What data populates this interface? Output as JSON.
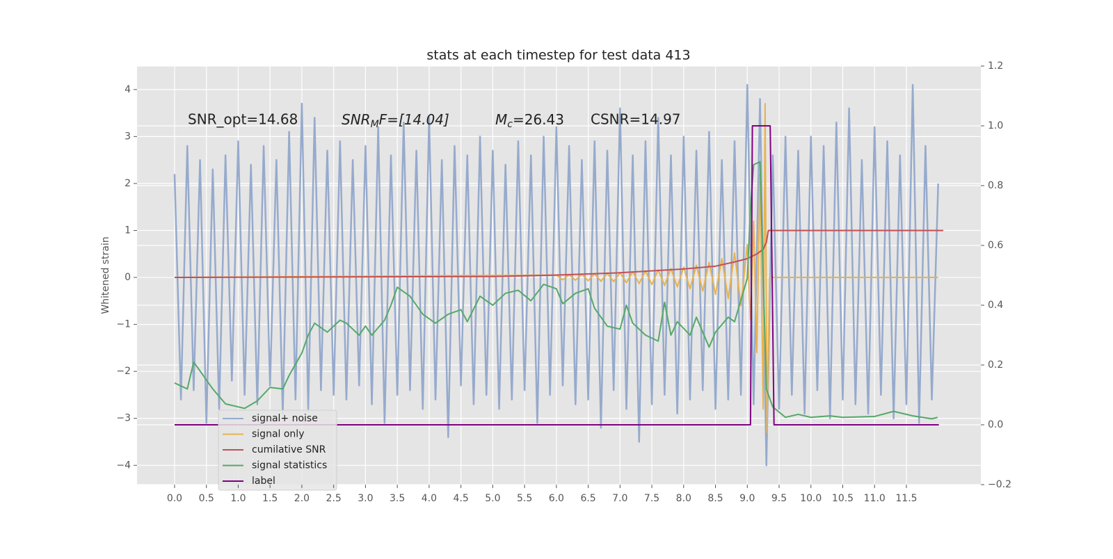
{
  "chart_data": {
    "type": "line",
    "title": "stats at each timestep for test data 413",
    "ylabel": "Whitened strain",
    "annotations": [
      {
        "text": "SNR_opt=14.68"
      },
      {
        "symbol": "SNR",
        "sub": "M",
        "text": "F=[14.04]"
      },
      {
        "symbol": "M",
        "sub": "c",
        "text": "=26.43"
      },
      {
        "text": "CSNR=14.97"
      }
    ],
    "grid": true,
    "xlim": [
      -0.59,
      12.67
    ],
    "ylim": [
      -4.41,
      4.5
    ],
    "y2lim": [
      -0.2,
      1.2
    ],
    "xticks": [
      {
        "value": 0,
        "label": "0.0"
      },
      0.5,
      {
        "value": 1,
        "label": "1.0"
      },
      1.5,
      {
        "value": 2,
        "label": "2.0"
      },
      2.5,
      {
        "value": 3,
        "label": "3.0"
      },
      3.5,
      {
        "value": 4,
        "label": "4.0"
      },
      4.5,
      {
        "value": 5,
        "label": "5.0"
      },
      5.5,
      {
        "value": 6,
        "label": "6.0"
      },
      6.5,
      {
        "value": 7,
        "label": "7.0"
      },
      7.5,
      {
        "value": 8,
        "label": "8.0"
      },
      8.5,
      {
        "value": 9,
        "label": "9.0"
      },
      9.5,
      {
        "value": 10,
        "label": "10.0"
      },
      10.5,
      {
        "value": 11,
        "label": "11.0"
      },
      11.5
    ],
    "yticks": [
      {
        "value": -4,
        "label": "−4"
      },
      {
        "value": -3,
        "label": "−3"
      },
      {
        "value": -2,
        "label": "−2"
      },
      {
        "value": -1,
        "label": "−1"
      },
      0,
      1,
      2,
      3,
      4
    ],
    "y2ticks": [
      {
        "value": -0.2,
        "label": "−0.2"
      },
      {
        "value": 0,
        "label": "0.0"
      },
      0.2,
      0.4,
      0.6,
      0.8,
      {
        "value": 1,
        "label": "1.0"
      },
      1.2
    ],
    "series": [
      {
        "name": "signal+ noise",
        "color": "#96aacd",
        "x": [
          0,
          0.1,
          0.2,
          0.3,
          0.4,
          0.5,
          0.6,
          0.7,
          0.8,
          0.9,
          1.0,
          1.1,
          1.2,
          1.3,
          1.4,
          1.5,
          1.6,
          1.7,
          1.8,
          1.9,
          2.0,
          2.1,
          2.2,
          2.3,
          2.4,
          2.5,
          2.6,
          2.7,
          2.8,
          2.9,
          3.0,
          3.1,
          3.2,
          3.3,
          3.4,
          3.5,
          3.6,
          3.7,
          3.8,
          3.9,
          4.0,
          4.1,
          4.2,
          4.3,
          4.4,
          4.5,
          4.6,
          4.7,
          4.8,
          4.9,
          5.0,
          5.1,
          5.2,
          5.3,
          5.4,
          5.5,
          5.6,
          5.7,
          5.8,
          5.9,
          6.0,
          6.1,
          6.2,
          6.3,
          6.4,
          6.5,
          6.6,
          6.7,
          6.8,
          6.9,
          7.0,
          7.1,
          7.2,
          7.3,
          7.4,
          7.5,
          7.6,
          7.7,
          7.8,
          7.9,
          8.0,
          8.1,
          8.2,
          8.3,
          8.4,
          8.5,
          8.6,
          8.7,
          8.8,
          8.9,
          9.0,
          9.1,
          9.2,
          9.3,
          9.4,
          9.5,
          9.6,
          9.7,
          9.8,
          9.9,
          10.0,
          10.1,
          10.2,
          10.3,
          10.4,
          10.5,
          10.6,
          10.7,
          10.8,
          10.9,
          11.0,
          11.1,
          11.2,
          11.3,
          11.4,
          11.5,
          11.6,
          11.7,
          11.8,
          11.9,
          12.0
        ],
        "values": [
          2.2,
          -2.6,
          2.8,
          -2.4,
          2.5,
          -3.1,
          2.3,
          -2.8,
          2.6,
          -2.2,
          2.9,
          -2.5,
          2.4,
          -2.7,
          2.8,
          -2.3,
          2.5,
          -2.9,
          3.1,
          -2.6,
          3.7,
          -2.8,
          3.4,
          -2.4,
          2.7,
          -2.5,
          2.9,
          -2.6,
          2.5,
          -2.3,
          2.8,
          -2.7,
          3.2,
          -3.1,
          2.6,
          -2.5,
          3.3,
          -2.4,
          2.7,
          -2.8,
          3.4,
          -2.6,
          2.5,
          -3.4,
          2.8,
          -2.3,
          2.6,
          -2.7,
          3.0,
          -2.5,
          2.7,
          -2.8,
          2.4,
          -2.6,
          2.9,
          -2.4,
          2.6,
          -3.1,
          3.0,
          -2.5,
          3.2,
          -2.3,
          2.8,
          -2.7,
          2.5,
          -2.6,
          2.9,
          -3.2,
          2.7,
          -2.4,
          3.6,
          -2.8,
          2.6,
          -3.5,
          2.9,
          -2.7,
          3.4,
          -2.5,
          2.6,
          -2.9,
          3.0,
          -2.6,
          2.7,
          -2.4,
          3.1,
          -2.8,
          2.5,
          -2.6,
          2.9,
          -2.5,
          4.1,
          -2.7,
          3.8,
          -4.0,
          2.6,
          -2.8,
          3.0,
          -2.5,
          2.7,
          -2.9,
          3.0,
          -2.4,
          2.8,
          -3.0,
          3.3,
          -2.6,
          3.6,
          -2.7,
          2.5,
          -2.9,
          3.2,
          -2.5,
          2.9,
          -3.0,
          2.6,
          -2.7,
          4.1,
          -3.1,
          2.8,
          -2.6,
          2.0
        ]
      },
      {
        "name": "signal only",
        "color": "#e8b24f",
        "x": [
          0,
          6.0,
          6.1,
          6.2,
          6.3,
          6.4,
          6.5,
          6.6,
          6.7,
          6.8,
          6.9,
          7.0,
          7.1,
          7.2,
          7.3,
          7.4,
          7.5,
          7.6,
          7.7,
          7.8,
          7.9,
          8.0,
          8.1,
          8.2,
          8.3,
          8.4,
          8.5,
          8.6,
          8.7,
          8.8,
          8.9,
          9.0,
          9.05,
          9.1,
          9.15,
          9.2,
          9.25,
          9.28,
          9.31,
          9.35,
          12.0
        ],
        "values": [
          0,
          0.05,
          -0.05,
          0.06,
          -0.06,
          0.07,
          -0.07,
          0.08,
          -0.08,
          0.09,
          -0.09,
          0.1,
          -0.11,
          0.12,
          -0.13,
          0.14,
          -0.15,
          0.16,
          -0.17,
          0.19,
          -0.2,
          0.22,
          -0.24,
          0.26,
          -0.29,
          0.32,
          -0.36,
          0.4,
          -0.45,
          0.52,
          -0.6,
          0.7,
          -0.9,
          1.2,
          -1.6,
          2.2,
          -2.8,
          3.7,
          -3.3,
          0,
          0
        ]
      },
      {
        "name": "cumilative SNR",
        "color": "#c44e52",
        "x": [
          0,
          5,
          6,
          7,
          8,
          8.5,
          8.8,
          9.0,
          9.15,
          9.25,
          9.3,
          9.33,
          12.08
        ],
        "values": [
          0,
          0.02,
          0.05,
          0.1,
          0.18,
          0.24,
          0.33,
          0.4,
          0.5,
          0.6,
          0.75,
          1.0,
          1.0
        ]
      },
      {
        "name": "signal statistics",
        "color": "#55a868",
        "axis": "y2",
        "x": [
          0,
          0.2,
          0.3,
          0.4,
          0.6,
          0.8,
          1.0,
          1.1,
          1.3,
          1.5,
          1.7,
          1.8,
          2.0,
          2.1,
          2.2,
          2.4,
          2.6,
          2.7,
          2.9,
          3.0,
          3.1,
          3.3,
          3.4,
          3.5,
          3.7,
          3.9,
          4.1,
          4.3,
          4.5,
          4.6,
          4.8,
          5.0,
          5.2,
          5.4,
          5.6,
          5.8,
          6.0,
          6.1,
          6.3,
          6.5,
          6.6,
          6.8,
          7.0,
          7.1,
          7.2,
          7.4,
          7.6,
          7.7,
          7.8,
          7.9,
          8.1,
          8.2,
          8.4,
          8.5,
          8.7,
          8.8,
          9.0,
          9.05,
          9.1,
          9.2,
          9.3,
          9.4,
          9.6,
          9.8,
          10.0,
          10.3,
          10.5,
          11.0,
          11.3,
          11.6,
          11.9,
          11.99
        ],
        "values": [
          0.14,
          0.12,
          0.21,
          0.18,
          0.12,
          0.07,
          0.06,
          0.055,
          0.08,
          0.125,
          0.12,
          0.165,
          0.24,
          0.3,
          0.34,
          0.31,
          0.35,
          0.34,
          0.3,
          0.33,
          0.3,
          0.35,
          0.4,
          0.46,
          0.43,
          0.37,
          0.34,
          0.37,
          0.385,
          0.345,
          0.43,
          0.4,
          0.44,
          0.45,
          0.415,
          0.47,
          0.455,
          0.405,
          0.44,
          0.455,
          0.39,
          0.33,
          0.32,
          0.4,
          0.34,
          0.3,
          0.28,
          0.41,
          0.3,
          0.345,
          0.3,
          0.36,
          0.26,
          0.31,
          0.36,
          0.345,
          0.49,
          0.72,
          0.87,
          0.88,
          0.12,
          0.06,
          0.025,
          0.035,
          0.025,
          0.03,
          0.025,
          0.028,
          0.045,
          0.03,
          0.02,
          0.025
        ]
      },
      {
        "name": "label",
        "color": "#800080",
        "axis": "y2",
        "x": [
          0,
          9.05,
          9.08,
          9.36,
          9.42,
          12.01
        ],
        "values": [
          0,
          0,
          1,
          1,
          0,
          0
        ]
      }
    ]
  }
}
